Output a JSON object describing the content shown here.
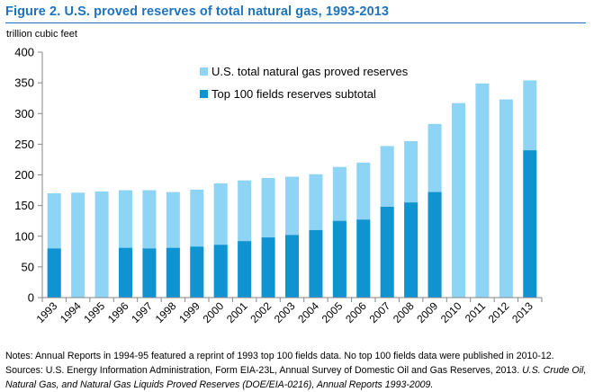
{
  "figure": {
    "title": "Figure 2. U.S. proved reserves of total natural gas, 1993-2013",
    "unit_label": "trillion cubic feet"
  },
  "chart_data": {
    "type": "bar",
    "categories": [
      "1993",
      "1994",
      "1995",
      "1996",
      "1997",
      "1998",
      "1999",
      "2000",
      "2001",
      "2002",
      "2003",
      "2004",
      "2005",
      "2006",
      "2007",
      "2008",
      "2009",
      "2010",
      "2011",
      "2012",
      "2013"
    ],
    "series": [
      {
        "name": "U.S. total natural gas proved reserves",
        "color": "#8ed4f5",
        "values": [
          170,
          171,
          173,
          175,
          175,
          172,
          176,
          186,
          191,
          195,
          197,
          201,
          213,
          220,
          247,
          255,
          283,
          317,
          349,
          323,
          354
        ]
      },
      {
        "name": "Top 100 fields reserves subtotal",
        "color": "#0f93d1",
        "values": [
          80,
          null,
          null,
          81,
          80,
          81,
          83,
          86,
          92,
          98,
          102,
          110,
          125,
          127,
          148,
          155,
          172,
          null,
          null,
          null,
          240
        ]
      }
    ],
    "ylim": [
      0,
      400
    ],
    "yticks": [
      0,
      50,
      100,
      150,
      200,
      250,
      300,
      350,
      400
    ],
    "grid": false,
    "legend_position": "top-center"
  },
  "notes": {
    "line1": "Notes: Annual Reports in 1994-95 featured a reprint of 1993 top 100 fields data. No top 100 fields data were published in 2010-12.",
    "line2_plain": "Sources: U.S. Energy Information Administration, Form EIA-23L, Annual Survey of Domestic Oil and Gas Reserves, 2013. ",
    "line2_italic": "U.S. Crude Oil,",
    "line3_italic": "Natural Gas, and Natural Gas Liquids Proved Reserves (DOE/EIA-0216), Annual Reports 1993-2009."
  }
}
